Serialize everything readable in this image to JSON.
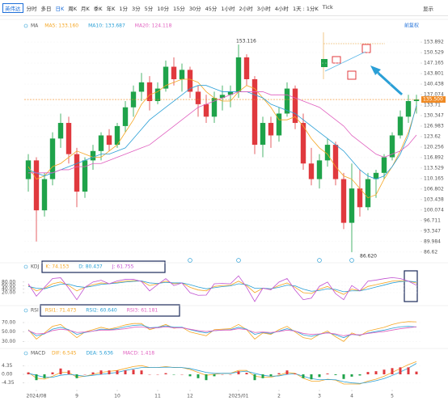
{
  "toolbar": {
    "symbol": "英伟达",
    "items": [
      "分时",
      "多日",
      "日K",
      "周K",
      "月K",
      "季K",
      "年K",
      "1分",
      "3分",
      "5分",
      "10分",
      "15分",
      "30分",
      "45分",
      "1小时",
      "2小时",
      "3小时",
      "4小时",
      "1天 : 1分K",
      "Tick"
    ],
    "right": "显示"
  },
  "chart_data": [
    {
      "type": "candlestick",
      "indicator": "MA",
      "adjust": "前复权",
      "up_color": "#1fa34a",
      "down_color": "#e0393e",
      "categories": [
        null,
        "2024/08",
        null,
        null,
        null,
        null,
        "9",
        null,
        null,
        null,
        null,
        "10",
        null,
        null,
        null,
        null,
        "11",
        null,
        null,
        null,
        "12",
        null,
        null,
        null,
        null,
        null,
        "2025/01",
        null,
        null,
        null,
        null,
        "2",
        null,
        null,
        null,
        null,
        "3",
        null,
        null,
        null,
        "4",
        null,
        null,
        null,
        null,
        "5",
        null,
        null,
        null
      ],
      "candles": [
        [
          110,
          118,
          106,
          116
        ],
        [
          116,
          117,
          90,
          100
        ],
        [
          100,
          112,
          98,
          110
        ],
        [
          110,
          125,
          108,
          123
        ],
        [
          123,
          131,
          120,
          128
        ],
        [
          128,
          130,
          115,
          118
        ],
        [
          118,
          120,
          101,
          106
        ],
        [
          106,
          117,
          104,
          116
        ],
        [
          116,
          121,
          113,
          119
        ],
        [
          119,
          125,
          116,
          124
        ],
        [
          124,
          126,
          119,
          121
        ],
        [
          121,
          128,
          120,
          127
        ],
        [
          127,
          135,
          125,
          133
        ],
        [
          133,
          140,
          130,
          138
        ],
        [
          138,
          144,
          135,
          141
        ],
        [
          141,
          143,
          132,
          135
        ],
        [
          135,
          141,
          134,
          139
        ],
        [
          139,
          148,
          138,
          146
        ],
        [
          146,
          149,
          140,
          142
        ],
        [
          142,
          147,
          138,
          145
        ],
        [
          145,
          146,
          136,
          138
        ],
        [
          138,
          140,
          130,
          134
        ],
        [
          134,
          137,
          128,
          130
        ],
        [
          130,
          138,
          128,
          136
        ],
        [
          136,
          140,
          132,
          137
        ],
        [
          137,
          140,
          133,
          138
        ],
        [
          138,
          153.116,
          136,
          149
        ],
        [
          149,
          150,
          140,
          142
        ],
        [
          142,
          143,
          118,
          121
        ],
        [
          121,
          130,
          117,
          128
        ],
        [
          128,
          130,
          120,
          124
        ],
        [
          124,
          133,
          122,
          131
        ],
        [
          131,
          141,
          130,
          139
        ],
        [
          139,
          140,
          126,
          128
        ],
        [
          128,
          131,
          113,
          115
        ],
        [
          115,
          120,
          108,
          110
        ],
        [
          110,
          118,
          107,
          116
        ],
        [
          116,
          123,
          114,
          121
        ],
        [
          121,
          122,
          108,
          110
        ],
        [
          110,
          112,
          94,
          96
        ],
        [
          96,
          115,
          86.62,
          107
        ],
        [
          107,
          113,
          98,
          101
        ],
        [
          101,
          112,
          100,
          110
        ],
        [
          110,
          113,
          104,
          112
        ],
        [
          112,
          118,
          110,
          117
        ],
        [
          117,
          125,
          116,
          124
        ],
        [
          124,
          132,
          123,
          130
        ],
        [
          130,
          137,
          128,
          135
        ],
        [
          135,
          137,
          131,
          135.5
        ]
      ],
      "series": [
        {
          "name": "MA5: 133.160",
          "color": "#f5a623",
          "values": [
            114,
            110,
            111,
            114,
            115,
            117,
            119,
            118,
            117,
            117,
            119,
            121,
            125,
            129,
            134,
            137,
            138,
            140,
            141,
            142,
            142,
            141,
            138,
            136,
            135,
            135,
            138,
            140,
            139,
            136,
            133,
            129,
            129,
            130,
            127,
            123,
            120,
            118,
            114,
            111,
            110,
            107,
            104,
            105,
            110,
            114,
            119,
            125,
            133.16
          ]
        },
        {
          "name": "MA10: 133.687",
          "color": "#2a9fd6",
          "values": [
            113,
            112,
            111,
            112,
            113,
            114,
            115,
            116,
            117,
            118,
            118,
            119,
            120,
            123,
            126,
            129,
            131,
            133,
            135,
            137,
            139,
            140,
            140,
            139,
            138,
            138,
            138,
            138,
            137,
            136,
            134,
            133,
            132,
            131,
            129,
            127,
            125,
            123,
            121,
            119,
            116,
            113,
            111,
            110,
            111,
            114,
            118,
            124,
            133.687
          ]
        },
        {
          "name": "MA20: 124.118",
          "color": "#e05fbf",
          "values": [
            112,
            112,
            112,
            112,
            113,
            113,
            114,
            114,
            115,
            115,
            116,
            117,
            118,
            119,
            120,
            121,
            123,
            125,
            127,
            129,
            131,
            133,
            134,
            135,
            136,
            137,
            138,
            138,
            138,
            138,
            137,
            137,
            137,
            136,
            135,
            134,
            133,
            131,
            129,
            127,
            124,
            122,
            120,
            118,
            117,
            118,
            119,
            121,
            124.118
          ]
        }
      ],
      "price_line": {
        "value": 135.5,
        "label": "135.500",
        "color": "#f08a24"
      },
      "annotations": [
        {
          "value": 153.116,
          "label": "153.116"
        },
        {
          "value": 86.62,
          "label": "86.620"
        }
      ],
      "ylim": [
        84.5,
        156.5
      ],
      "yticks": [
        153.892,
        150.529,
        147.165,
        143.801,
        140.438,
        137.074,
        133.71,
        130.347,
        126.983,
        123.62,
        120.256,
        116.892,
        113.529,
        110.165,
        106.802,
        103.438,
        100.074,
        96.711,
        93.347,
        89.984,
        86.62
      ]
    },
    {
      "type": "line",
      "indicator": "KDJ",
      "ylim": [
        -35,
        125
      ],
      "yticks": [
        {
          "value": 80,
          "label": "80.00"
        },
        {
          "value": 60,
          "label": "60.00"
        },
        {
          "value": 40,
          "label": "40.00"
        },
        {
          "value": 20,
          "label": "20.00"
        }
      ],
      "series": [
        {
          "name": "K: 74.153",
          "color": "#f5a623",
          "values": [
            60,
            30,
            45,
            70,
            80,
            60,
            30,
            50,
            65,
            75,
            70,
            78,
            85,
            88,
            85,
            60,
            70,
            85,
            70,
            75,
            50,
            35,
            30,
            55,
            60,
            62,
            85,
            60,
            20,
            45,
            40,
            60,
            75,
            50,
            20,
            15,
            40,
            55,
            30,
            10,
            40,
            30,
            55,
            65,
            75,
            85,
            88,
            85,
            74.153
          ]
        },
        {
          "name": "D: 80.437",
          "color": "#2a9fd6",
          "values": [
            55,
            45,
            42,
            55,
            68,
            68,
            55,
            50,
            57,
            67,
            70,
            74,
            80,
            84,
            86,
            75,
            72,
            78,
            75,
            75,
            65,
            52,
            42,
            48,
            54,
            58,
            70,
            65,
            45,
            45,
            42,
            50,
            62,
            58,
            40,
            28,
            32,
            42,
            38,
            25,
            30,
            30,
            40,
            52,
            63,
            75,
            82,
            85,
            80.437
          ]
        },
        {
          "name": "J: 61.755",
          "color": "#c04fd0",
          "values": [
            70,
            0,
            50,
            100,
            104,
            45,
            -20,
            50,
            80,
            90,
            70,
            86,
            95,
            96,
            83,
            30,
            66,
            99,
            60,
            75,
            20,
            5,
            6,
            70,
            72,
            70,
            115,
            50,
            -30,
            45,
            36,
            80,
            100,
            34,
            -20,
            -11,
            56,
            80,
            14,
            -20,
            60,
            30,
            85,
            91,
            99,
            105,
            100,
            85,
            61.755
          ]
        }
      ]
    },
    {
      "type": "line",
      "indicator": "RSI",
      "ylim": [
        22,
        82
      ],
      "yticks": [
        {
          "value": 70,
          "label": "70.00"
        },
        {
          "value": 50,
          "label": "50.00"
        },
        {
          "value": 30,
          "label": "30.00"
        }
      ],
      "series": [
        {
          "name": "RSI1: 71.473",
          "color": "#f5a623",
          "values": [
            55,
            35,
            48,
            62,
            66,
            52,
            38,
            50,
            55,
            60,
            56,
            60,
            65,
            68,
            68,
            55,
            60,
            66,
            58,
            60,
            50,
            46,
            42,
            55,
            56,
            57,
            66,
            55,
            35,
            48,
            45,
            55,
            62,
            50,
            38,
            35,
            45,
            52,
            40,
            30,
            48,
            42,
            52,
            56,
            60,
            66,
            70,
            72,
            71.473
          ]
        },
        {
          "name": "RSI2: 60.640",
          "color": "#2a9fd6",
          "values": [
            54,
            42,
            46,
            56,
            60,
            55,
            45,
            49,
            52,
            56,
            55,
            57,
            61,
            64,
            65,
            59,
            60,
            63,
            60,
            60,
            55,
            51,
            48,
            53,
            54,
            55,
            60,
            56,
            45,
            49,
            47,
            52,
            57,
            52,
            44,
            41,
            45,
            49,
            44,
            38,
            45,
            43,
            48,
            51,
            54,
            58,
            61,
            62,
            60.64
          ]
        },
        {
          "name": "RSI3: 61.181",
          "color": "#e05fbf",
          "values": [
            53,
            46,
            47,
            53,
            56,
            54,
            49,
            50,
            52,
            54,
            54,
            55,
            57,
            60,
            61,
            58,
            59,
            61,
            59,
            59,
            56,
            53,
            51,
            53,
            54,
            54,
            57,
            55,
            49,
            50,
            49,
            51,
            54,
            52,
            47,
            45,
            46,
            48,
            46,
            42,
            45,
            44,
            47,
            49,
            51,
            54,
            57,
            59,
            61.181
          ]
        }
      ]
    },
    {
      "type": "macd",
      "indicator": "MACD",
      "ylim": [
        -7.5,
        7.5
      ],
      "yticks": [
        4.35,
        {
          "value": 0,
          "label": "0.00"
        },
        -4.35
      ],
      "series": [
        {
          "name": "DIF: 6.545",
          "color": "#f5a623",
          "values": [
            1,
            -2,
            -2.5,
            -1,
            1,
            1,
            -1.5,
            -1,
            0,
            1,
            1.5,
            2,
            3,
            4,
            4.5,
            3.5,
            3.5,
            4,
            3.5,
            3.5,
            2.5,
            1,
            -0.5,
            0,
            0.5,
            0.5,
            2,
            2,
            -1,
            -1.5,
            -1.5,
            -0.5,
            1,
            0.5,
            -2,
            -3.5,
            -3.5,
            -2.5,
            -3,
            -5,
            -5,
            -5,
            -3.5,
            -2.5,
            -1,
            1,
            3,
            5,
            6.545
          ]
        },
        {
          "name": "DEA: 5.636",
          "color": "#2a9fd6",
          "values": [
            0.5,
            -0.5,
            -1.5,
            -1.5,
            -0.5,
            0,
            -0.5,
            -1,
            -0.5,
            0,
            0.5,
            1,
            2,
            2.8,
            3.5,
            3.5,
            3.5,
            3.7,
            3.6,
            3.5,
            3,
            2,
            1,
            0.5,
            0.5,
            0.5,
            1.2,
            1.6,
            0.5,
            -0.5,
            -1,
            -0.8,
            0,
            0.3,
            -1,
            -2.2,
            -2.8,
            -2.7,
            -2.8,
            -3.8,
            -4.4,
            -4.7,
            -4.1,
            -3.3,
            -2.2,
            -0.6,
            1.2,
            3.2,
            5.636
          ]
        },
        {
          "name": "MACD: 1.418",
          "color": "#e05fbf",
          "kind": "bar",
          "values": [
            1,
            -3,
            -2,
            1,
            3,
            2,
            -2,
            0,
            1,
            2,
            2,
            2,
            2,
            2.4,
            2,
            0,
            0,
            0.6,
            -0.2,
            0,
            -1,
            -2,
            -3,
            -1,
            0,
            0,
            1.6,
            0.8,
            -3,
            -2,
            -1,
            0.6,
            2,
            0.4,
            -2,
            -2.6,
            -1.4,
            0.4,
            -0.4,
            -2.4,
            -1.2,
            -0.6,
            1.2,
            1.6,
            2.4,
            3.2,
            3.6,
            3.6,
            1.418
          ]
        }
      ]
    }
  ]
}
